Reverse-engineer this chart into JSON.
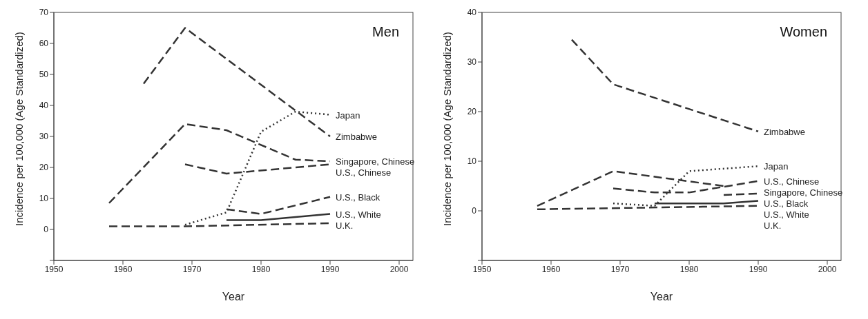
{
  "chart_data": [
    {
      "type": "line",
      "title": "Men",
      "xlabel": "Year",
      "ylabel": "Incidence per 100,000 (Age Standardized)",
      "xlim": [
        1950,
        2002
      ],
      "xticks": [
        1950,
        1960,
        1970,
        1980,
        1990,
        2000
      ],
      "ylim": [
        -10,
        70
      ],
      "yticks": [
        {
          "value": -10,
          "label": null
        },
        0,
        10,
        20,
        30,
        40,
        50,
        60,
        70
      ],
      "grid": false,
      "legend": false,
      "marker": "none",
      "series": [
        {
          "name": "Zimbabwe",
          "color": "#333333",
          "line_style": "dashed",
          "x": [
            1963,
            1969,
            1990
          ],
          "values": [
            47,
            65,
            30
          ]
        },
        {
          "name": "Singapore, Chinese",
          "color": "#333333",
          "line_style": "dashed",
          "x": [
            1958,
            1969,
            1975,
            1985,
            1990
          ],
          "values": [
            8.5,
            34,
            32,
            22.5,
            22
          ]
        },
        {
          "name": "Japan",
          "color": "#333333",
          "line_style": "dotted",
          "x": [
            1969,
            1975,
            1980,
            1985,
            1990
          ],
          "values": [
            1.5,
            5.5,
            31.5,
            38,
            37
          ]
        },
        {
          "name": "U.S., Chinese",
          "color": "#333333",
          "line_style": "dashed",
          "x": [
            1969,
            1975,
            1990
          ],
          "values": [
            21,
            18,
            21
          ]
        },
        {
          "name": "U.S., Black",
          "color": "#333333",
          "line_style": "dashed",
          "x": [
            1975,
            1980,
            1990
          ],
          "values": [
            6.5,
            5,
            10.5
          ]
        },
        {
          "name": "U.S., White",
          "color": "#333333",
          "line_style": "solid",
          "x": [
            1975,
            1980,
            1990
          ],
          "values": [
            3,
            3,
            5
          ]
        },
        {
          "name": "U.K.",
          "color": "#333333",
          "line_style": "dashed",
          "x": [
            1958,
            1969,
            1990
          ],
          "values": [
            1,
            1,
            2
          ]
        }
      ]
    },
    {
      "type": "line",
      "title": "Women",
      "xlabel": "Year",
      "ylabel": "Incidence per 100,000 (Age Standardized)",
      "xlim": [
        1950,
        2002
      ],
      "xticks": [
        1950,
        1960,
        1970,
        1980,
        1990,
        2000
      ],
      "ylim": [
        -10,
        40
      ],
      "yticks": [
        {
          "value": -10,
          "label": null
        },
        0,
        10,
        20,
        30,
        40
      ],
      "grid": false,
      "legend": false,
      "marker": "none",
      "series": [
        {
          "name": "Zimbabwe",
          "color": "#333333",
          "line_style": "dashed",
          "x": [
            1963,
            1969,
            1990
          ],
          "values": [
            34.5,
            25.5,
            16
          ]
        },
        {
          "name": "Singapore, Chinese",
          "color": "#333333",
          "line_style": "dashed",
          "x": [
            1958,
            1969,
            1985
          ],
          "values": [
            1,
            8,
            5
          ]
        },
        {
          "name": "Japan",
          "color": "#333333",
          "line_style": "dotted",
          "x": [
            1969,
            1975,
            1980,
            1990
          ],
          "values": [
            1.5,
            1,
            8,
            9
          ]
        },
        {
          "name": "U.S., Chinese",
          "color": "#333333",
          "line_style": "dashed",
          "x": [
            1969,
            1975,
            1980,
            1990
          ],
          "values": [
            4.5,
            3.7,
            3.7,
            6
          ]
        },
        {
          "name": "U.S., Black",
          "color": "#333333",
          "line_style": "dashed",
          "x": [
            1985,
            1990
          ],
          "values": [
            3.2,
            3.5
          ]
        },
        {
          "name": "U.S., White",
          "color": "#333333",
          "line_style": "solid",
          "x": [
            1975,
            1985,
            1990
          ],
          "values": [
            1.5,
            1.5,
            2
          ]
        },
        {
          "name": "U.K.",
          "color": "#333333",
          "line_style": "dashed",
          "x": [
            1958,
            1990
          ],
          "values": [
            0.3,
            1
          ]
        }
      ]
    }
  ]
}
